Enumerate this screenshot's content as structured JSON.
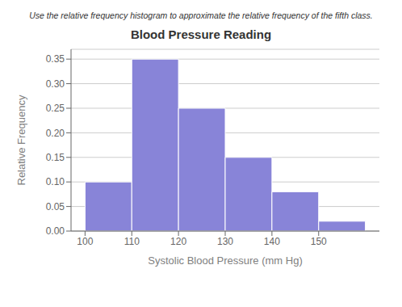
{
  "chart_data": {
    "type": "histogram",
    "title": "Blood Pressure Reading",
    "subtitle": "Use the relative frequency histogram to approximate the relative frequency of the fifth class.",
    "xlabel": "Systolic Blood Pressure (mm Hg)",
    "ylabel": "Relative Frequency",
    "bins": [
      100,
      110,
      120,
      130,
      140,
      150,
      160
    ],
    "values": [
      0.1,
      0.35,
      0.25,
      0.15,
      0.08,
      0.02
    ],
    "color": "#8884d8",
    "xlim": [
      97,
      163
    ],
    "xticks": [
      100,
      110,
      120,
      130,
      140,
      150
    ],
    "ylim": [
      0.0,
      0.37
    ],
    "yticks": [
      {
        "value": 0.0,
        "label": "0.00"
      },
      {
        "value": 0.05,
        "label": "0.05"
      },
      {
        "value": 0.1,
        "label": "0.10"
      },
      {
        "value": 0.15,
        "label": "0.15"
      },
      {
        "value": 0.2,
        "label": "0.20"
      },
      {
        "value": 0.25,
        "label": "0.25"
      },
      {
        "value": 0.3,
        "label": "0.30"
      },
      {
        "value": 0.35,
        "label": "0.35"
      }
    ],
    "grid": true
  }
}
